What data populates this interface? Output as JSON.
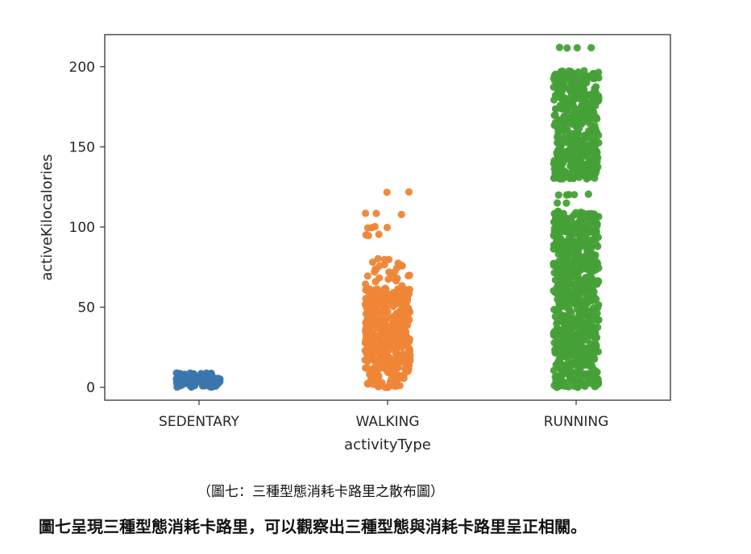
{
  "chart_data": {
    "type": "scatter",
    "style": "strip plot (jittered categorical scatter)",
    "title": "",
    "xlabel": "activityType",
    "ylabel": "activeKilocalories",
    "categories": [
      "SEDENTARY",
      "WALKING",
      "RUNNING"
    ],
    "ylim": [
      -8,
      220
    ],
    "yticks": [
      0,
      50,
      100,
      150,
      200
    ],
    "grid": false,
    "legend": "none",
    "series": [
      {
        "category": "SEDENTARY",
        "color": "#3a75ad",
        "y_min": 0,
        "y_max": 9,
        "dense_ranges": [
          [
            0,
            9
          ]
        ],
        "sparse_values": []
      },
      {
        "category": "WALKING",
        "color": "#ee8536",
        "y_min": 0,
        "y_max": 122,
        "dense_ranges": [
          [
            0,
            62
          ]
        ],
        "sparse_values": [
          64,
          66,
          68,
          70,
          72,
          74,
          76,
          78,
          80,
          95,
          100,
          108,
          122
        ]
      },
      {
        "category": "RUNNING",
        "color": "#46a037",
        "y_min": 0,
        "y_max": 212,
        "dense_ranges": [
          [
            0,
            60
          ],
          [
            60,
            110
          ],
          [
            130,
            198
          ]
        ],
        "sparse_values": [
          115,
          120,
          145,
          150,
          212
        ]
      }
    ]
  },
  "captions": {
    "figure_caption": "（圖七：三種型態消耗卡路里之散布圖）",
    "body_text": "圖七呈現三種型態消耗卡路里，可以觀察出三種型態與消耗卡路里呈正相關。"
  }
}
